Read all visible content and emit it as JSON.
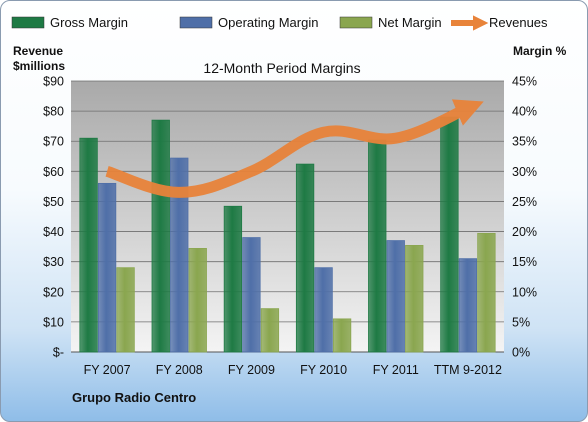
{
  "colors": {
    "gross": "#1e7a44",
    "operating": "#4f6fa8",
    "net": "#8aa64f",
    "revenues": "#e8833a",
    "plot_bg_top": "#a9a9a9",
    "plot_bg_bottom": "#f4f4f4"
  },
  "chart_data": {
    "type": "bar",
    "title": "12-Month Period Margins",
    "footer": "Grupo Radio Centro",
    "y_left_label_line1": "Revenue",
    "y_left_label_line2": "$millions",
    "y_right_label": "Margin %",
    "categories": [
      "FY 2007",
      "FY 2008",
      "FY 2009",
      "FY 2010",
      "FY 2011",
      "TTM 9-2012"
    ],
    "y_left": {
      "min": 0,
      "max": 90,
      "step": 10,
      "ticks": [
        "$-",
        "$10",
        "$20",
        "$30",
        "$40",
        "$50",
        "$60",
        "$70",
        "$80",
        "$90"
      ]
    },
    "y_right": {
      "min": 0,
      "max": 45,
      "step": 5,
      "ticks": [
        "0%",
        "5%",
        "10%",
        "15%",
        "20%",
        "25%",
        "30%",
        "35%",
        "40%",
        "45%"
      ]
    },
    "series": [
      {
        "name": "Gross Margin",
        "type": "bar",
        "axis": "right",
        "values": [
          35.5,
          38.5,
          24.2,
          31.2,
          35.2,
          39.0
        ]
      },
      {
        "name": "Operating Margin",
        "type": "bar",
        "axis": "right",
        "values": [
          28.0,
          32.2,
          19.0,
          14.0,
          18.5,
          15.5
        ]
      },
      {
        "name": "Net Margin",
        "type": "bar",
        "axis": "right",
        "values": [
          14.0,
          17.2,
          7.2,
          5.5,
          17.7,
          19.7
        ]
      },
      {
        "name": "Revenues",
        "type": "line",
        "axis": "left",
        "values": [
          60,
          53,
          60,
          73,
          71,
          81
        ]
      }
    ],
    "legend_position": "top",
    "grid": true
  }
}
